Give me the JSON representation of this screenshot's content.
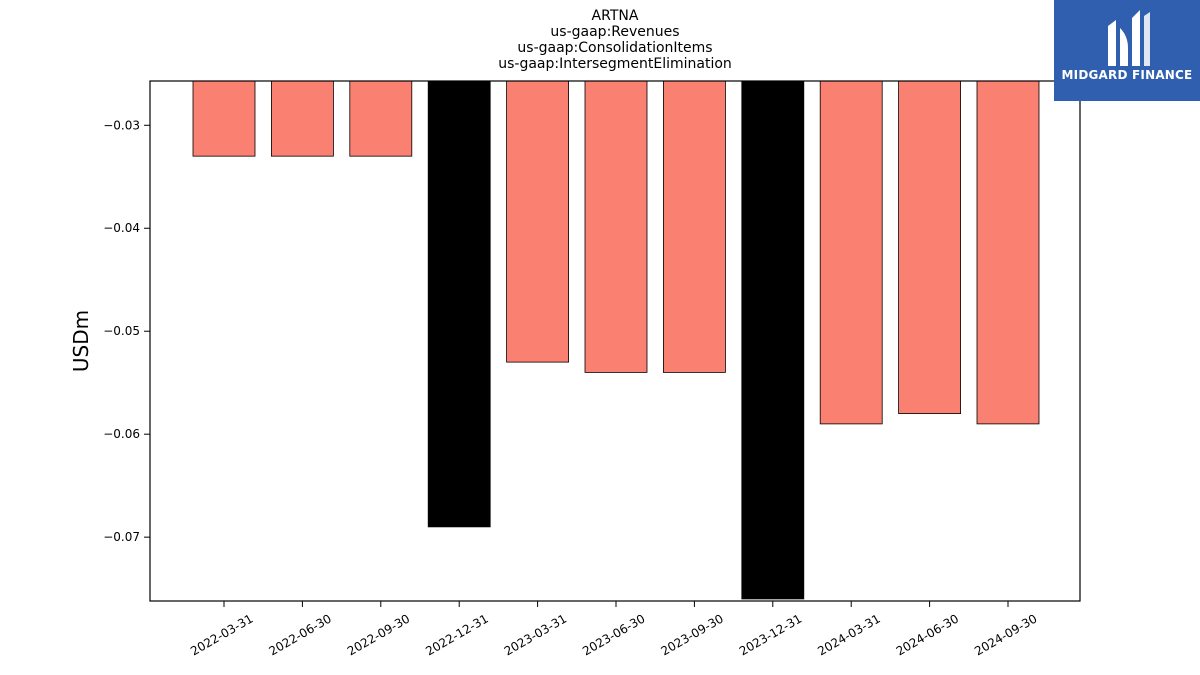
{
  "chart_data": {
    "type": "bar",
    "title_lines": [
      "ARTNA",
      "us-gaap:Revenues",
      "us-gaap:ConsolidationItems",
      "us-gaap:IntersegmentElimination"
    ],
    "xlabel": "",
    "ylabel": "USDm",
    "categories": [
      "2022-03-31",
      "2022-06-30",
      "2022-09-30",
      "2022-12-31",
      "2023-03-31",
      "2023-06-30",
      "2023-09-30",
      "2023-12-31",
      "2024-03-31",
      "2024-06-30",
      "2024-09-30"
    ],
    "values": [
      -0.033,
      -0.033,
      -0.033,
      -0.069,
      -0.053,
      -0.054,
      -0.054,
      -0.076,
      -0.059,
      -0.058,
      -0.059
    ],
    "bar_colors": [
      "#fa8072",
      "#fa8072",
      "#fa8072",
      "#000000",
      "#fa8072",
      "#fa8072",
      "#fa8072",
      "#000000",
      "#fa8072",
      "#fa8072",
      "#fa8072"
    ],
    "ylim": [
      -0.0762,
      -0.0257
    ],
    "yticks": [
      -0.03,
      -0.04,
      -0.05,
      -0.06,
      -0.07
    ],
    "ytick_labels": [
      "−0.03",
      "−0.04",
      "−0.05",
      "−0.06",
      "−0.07"
    ],
    "grid": false,
    "legend": "none"
  },
  "logo": {
    "text": "MIDGARD FINANCE",
    "background": "#2f5fae"
  }
}
